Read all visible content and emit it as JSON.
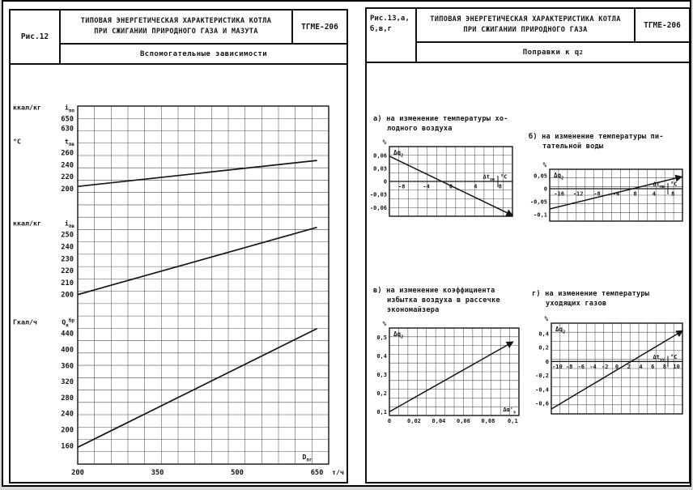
{
  "colors": {
    "ink": "#151515",
    "grid": "#3d3d3d",
    "paper": "#ffffff"
  },
  "left_page": {
    "fig_label": "Рис.12",
    "title_lines": [
      "ТИПОВАЯ ЭНЕРГЕТИЧЕСКАЯ ХАРАКТЕРИСТИКА КОТЛА",
      "ПРИ СЖИГАНИИ ПРИРОДНОГО ГАЗА И МАЗУТА"
    ],
    "model": "ТГМЕ-206",
    "subtitle": "Вспомогательные зависимости"
  },
  "right_page": {
    "fig_label_lines": [
      "Рис.13,а,",
      "б,в,г"
    ],
    "title_lines": [
      "ТИПОВАЯ ЭНЕРГЕТИЧЕСКАЯ ХАРАКТЕРИСТИКА КОТЛА",
      "ПРИ СЖИГАНИИ ПРИРОДНОГО ГАЗА"
    ],
    "model": "ТГМЕ-206",
    "subtitle_prefix": "Поправки к q",
    "subtitle_sub": "2"
  },
  "chart_data": [
    {
      "id": "aux",
      "type": "line",
      "title": "Вспомогательные зависимости",
      "x_axis": {
        "symbol_main": "D",
        "symbol_sub": "пг",
        "unit": "т/ч",
        "ticks": [
          200,
          350,
          500,
          650
        ],
        "range": [
          200,
          672
        ]
      },
      "grid": {
        "cols": 15,
        "rows": 29
      },
      "blocks": [
        {
          "unit": "ккал/кг",
          "symbol_main": "i",
          "symbol_sub": "пп",
          "ticks": [
            650,
            630
          ],
          "value_range": [
            660,
            620
          ],
          "band": [
            0.022,
            0.076
          ]
        },
        {
          "unit": "°C",
          "symbol_main": "t",
          "symbol_sub": "пв",
          "ticks": [
            260,
            240,
            220,
            200
          ],
          "value_range": [
            270,
            190
          ],
          "band": [
            0.113,
            0.248
          ],
          "points": [
            [
              200,
              204
            ],
            [
              650,
              247
            ]
          ]
        },
        {
          "unit": "ккал/кг",
          "symbol_main": "i",
          "symbol_sub": "пв",
          "ticks": [
            250,
            240,
            230,
            220,
            210,
            200
          ],
          "value_range": [
            258,
            196
          ],
          "band": [
            0.332,
            0.54
          ],
          "points": [
            [
              200,
              200
            ],
            [
              650,
              256
            ]
          ]
        },
        {
          "unit": "Гкал/ч",
          "symbol_main": "Q",
          "symbol_sub": "к",
          "symbol_sup": "бр",
          "ticks": [
            440,
            400,
            360,
            320,
            280,
            240,
            200,
            160
          ],
          "value_range": [
            465,
            148
          ],
          "band": [
            0.607,
            0.962
          ],
          "points": [
            [
              200,
              156
            ],
            [
              650,
              452
            ]
          ]
        }
      ]
    },
    {
      "id": "a",
      "type": "line",
      "title_lines": [
        "а) на изменение температуры хо-",
        "лодного воздуха"
      ],
      "y_label_main": "Δq",
      "y_label_sub": "2",
      "y_unit": "%",
      "y_range": [
        0.08,
        -0.08
      ],
      "y_ticks": [
        {
          "label": "0,06",
          "value": 0.06
        },
        {
          "label": "0,03",
          "value": 0.03
        },
        {
          "label": "0",
          "value": 0
        },
        {
          "label": "-0,03",
          "value": -0.03
        },
        {
          "label": "-0,06",
          "value": -0.06
        }
      ],
      "x_range": [
        -10,
        10
      ],
      "x_ticks": [
        {
          "label": "-8",
          "value": -8
        },
        {
          "label": "-4",
          "value": -4
        },
        {
          "label": "0",
          "value": 0
        },
        {
          "label": "4",
          "value": 4
        },
        {
          "label": "8",
          "value": 8
        }
      ],
      "x_symbol_main": "Δt",
      "x_symbol_sub": "хв",
      "x_unit": "°C",
      "zero_line": true,
      "grid": {
        "cols": 13,
        "rows": 8
      },
      "points": [
        [
          -10,
          0.058
        ],
        [
          10,
          -0.078
        ]
      ]
    },
    {
      "id": "b",
      "type": "line",
      "title_lines": [
        "б) на изменение температуры пи-",
        "тательной воды"
      ],
      "y_label_main": "Δq",
      "y_label_sub": "2",
      "y_unit": "%",
      "y_range": [
        0.075,
        -0.125
      ],
      "y_ticks": [
        {
          "label": "0,05",
          "value": 0.05
        },
        {
          "label": "0",
          "value": 0
        },
        {
          "label": "-0,05",
          "value": -0.05
        },
        {
          "label": "-0,1",
          "value": -0.1
        }
      ],
      "x_range": [
        -18,
        10
      ],
      "x_ticks": [
        {
          "label": "-16",
          "value": -16
        },
        {
          "label": "-12",
          "value": -12
        },
        {
          "label": "-8",
          "value": -8
        },
        {
          "label": "-4",
          "value": -4
        },
        {
          "label": "0",
          "value": 0
        },
        {
          "label": "4",
          "value": 4
        },
        {
          "label": "8",
          "value": 8
        }
      ],
      "x_symbol_main": "Δt",
      "x_symbol_sub": "пв",
      "x_unit": "°C",
      "zero_line": true,
      "grid": {
        "cols": 15,
        "rows": 6
      },
      "points": [
        [
          -18,
          -0.078
        ],
        [
          9.8,
          0.046
        ]
      ]
    },
    {
      "id": "v",
      "type": "line",
      "title_lines": [
        "в) на изменение коэффициента",
        "избытка воздуха в рассечке",
        "экономайзера"
      ],
      "y_label_main": "Δq",
      "y_label_sub": "2",
      "y_unit": "%",
      "y_range": [
        0.55,
        0.08
      ],
      "y_ticks": [
        {
          "label": "0,5",
          "value": 0.5
        },
        {
          "label": "0,4",
          "value": 0.4
        },
        {
          "label": "0,3",
          "value": 0.3
        },
        {
          "label": "0,2",
          "value": 0.2
        },
        {
          "label": "0,1",
          "value": 0.1
        }
      ],
      "x_range": [
        0,
        0.105
      ],
      "x_ticks": [
        {
          "label": "0",
          "value": 0
        },
        {
          "label": "0,02",
          "value": 0.02
        },
        {
          "label": "0,04",
          "value": 0.04
        },
        {
          "label": "0,06",
          "value": 0.06
        },
        {
          "label": "0,08",
          "value": 0.08
        },
        {
          "label": "0,1",
          "value": 0.1
        }
      ],
      "x_symbol_main": "Δα'",
      "x_symbol_sub": "э",
      "x_unit": "",
      "zero_line": false,
      "grid": {
        "cols": 14,
        "rows": 10
      },
      "points": [
        [
          0,
          0.1
        ],
        [
          0.1,
          0.475
        ]
      ]
    },
    {
      "id": "g",
      "type": "line",
      "title_lines": [
        "г) на изменение температуры",
        "уходящих газов"
      ],
      "y_label_main": "Δq",
      "y_label_sub": "2",
      "y_unit": "%",
      "y_range": [
        0.55,
        -0.75
      ],
      "y_ticks": [
        {
          "label": "0,4",
          "value": 0.4
        },
        {
          "label": "0,2",
          "value": 0.2
        },
        {
          "label": "0",
          "value": 0
        },
        {
          "label": "-0,2",
          "value": -0.2
        },
        {
          "label": "-0,4",
          "value": -0.4
        },
        {
          "label": "-0,6",
          "value": -0.6
        }
      ],
      "x_range": [
        -11,
        11
      ],
      "x_ticks": [
        {
          "label": "-10",
          "value": -10
        },
        {
          "label": "-8",
          "value": -8
        },
        {
          "label": "-6",
          "value": -6
        },
        {
          "label": "-4",
          "value": -4
        },
        {
          "label": "-2",
          "value": -2
        },
        {
          "label": "0",
          "value": 0
        },
        {
          "label": "2",
          "value": 2
        },
        {
          "label": "4",
          "value": 4
        },
        {
          "label": "6",
          "value": 6
        },
        {
          "label": "8",
          "value": 8
        },
        {
          "label": "10",
          "value": 10
        }
      ],
      "x_symbol_main": "Δt",
      "x_symbol_sub": "ух",
      "x_unit": "°C",
      "zero_line": true,
      "grid": {
        "cols": 15,
        "rows": 10
      },
      "points": [
        [
          -11,
          -0.68
        ],
        [
          11,
          0.44
        ]
      ]
    }
  ]
}
